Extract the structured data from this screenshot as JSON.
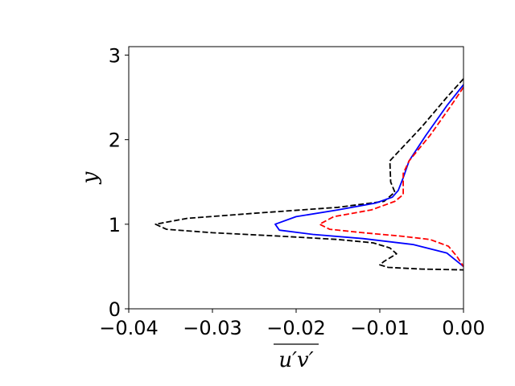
{
  "chart_data": {
    "type": "line",
    "title": "",
    "xlabel": "u′v′",
    "ylabel": "y",
    "xlim": [
      -0.04,
      0.0
    ],
    "ylim": [
      0.0,
      3.1
    ],
    "grid": false,
    "x_ticks": [
      -0.04,
      -0.03,
      -0.02,
      -0.01,
      0.0
    ],
    "x_tick_labels": [
      "−0.04",
      "−0.03",
      "−0.02",
      "−0.01",
      "0.00"
    ],
    "y_ticks": [
      0,
      1,
      2,
      3
    ],
    "y_tick_labels": [
      "0",
      "1",
      "2",
      "3"
    ],
    "series": [
      {
        "color": "#000000",
        "dash": "dashed",
        "points": [
          [
            0.0,
            2.72
          ],
          [
            -0.002,
            2.5
          ],
          [
            -0.005,
            2.15
          ],
          [
            -0.0088,
            1.75
          ],
          [
            -0.0087,
            1.5
          ],
          [
            -0.0082,
            1.38
          ],
          [
            -0.0095,
            1.27
          ],
          [
            -0.015,
            1.2
          ],
          [
            -0.025,
            1.13
          ],
          [
            -0.033,
            1.07
          ],
          [
            -0.0368,
            1.0
          ],
          [
            -0.0355,
            0.94
          ],
          [
            -0.03,
            0.9
          ],
          [
            -0.022,
            0.86
          ],
          [
            -0.015,
            0.82
          ],
          [
            -0.0108,
            0.78
          ],
          [
            -0.0088,
            0.72
          ],
          [
            -0.008,
            0.65
          ],
          [
            -0.0095,
            0.56
          ],
          [
            -0.01,
            0.52
          ],
          [
            -0.009,
            0.49
          ],
          [
            -0.005,
            0.47
          ],
          [
            0.0,
            0.46
          ]
        ]
      },
      {
        "color": "#0000ff",
        "dash": "solid",
        "points": [
          [
            0.0,
            2.65
          ],
          [
            -0.002,
            2.4
          ],
          [
            -0.0045,
            2.05
          ],
          [
            -0.0065,
            1.75
          ],
          [
            -0.0072,
            1.55
          ],
          [
            -0.0078,
            1.4
          ],
          [
            -0.0085,
            1.32
          ],
          [
            -0.0105,
            1.25
          ],
          [
            -0.015,
            1.17
          ],
          [
            -0.02,
            1.09
          ],
          [
            -0.0225,
            1.0
          ],
          [
            -0.022,
            0.93
          ],
          [
            -0.018,
            0.88
          ],
          [
            -0.012,
            0.83
          ],
          [
            -0.006,
            0.76
          ],
          [
            -0.002,
            0.66
          ],
          [
            0.0,
            0.5
          ]
        ]
      },
      {
        "color": "#ff0000",
        "dash": "dashed",
        "points": [
          [
            0.0,
            2.62
          ],
          [
            -0.0015,
            2.4
          ],
          [
            -0.004,
            2.05
          ],
          [
            -0.0065,
            1.75
          ],
          [
            -0.0072,
            1.6
          ],
          [
            -0.0072,
            1.35
          ],
          [
            -0.0082,
            1.27
          ],
          [
            -0.011,
            1.17
          ],
          [
            -0.0155,
            1.09
          ],
          [
            -0.0172,
            1.0
          ],
          [
            -0.016,
            0.94
          ],
          [
            -0.012,
            0.9
          ],
          [
            -0.0075,
            0.86
          ],
          [
            -0.004,
            0.82
          ],
          [
            -0.0018,
            0.74
          ],
          [
            -0.0008,
            0.62
          ],
          [
            0.0,
            0.5
          ]
        ]
      }
    ]
  }
}
